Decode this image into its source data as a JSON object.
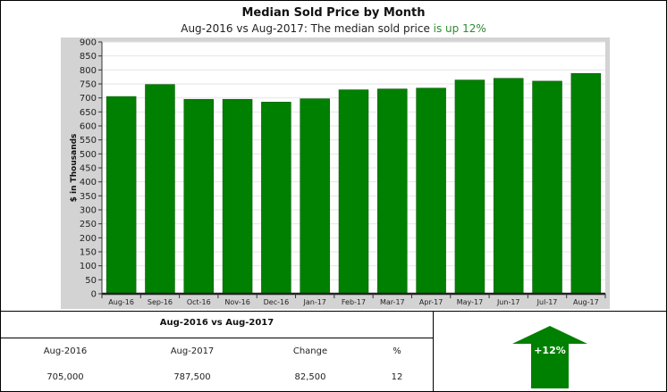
{
  "header": {
    "title": "Median Sold Price by Month",
    "subtitle_prefix": "Aug-2016 vs Aug-2017: The median sold price ",
    "subtitle_highlight": "is up 12%"
  },
  "chart_data": {
    "type": "bar",
    "title": "Median Sold Price by Month",
    "ylabel": "$ in Thousands",
    "xlabel": "",
    "categories": [
      "Aug-16",
      "Sep-16",
      "Oct-16",
      "Nov-16",
      "Dec-16",
      "Jan-17",
      "Feb-17",
      "Mar-17",
      "Apr-17",
      "May-17",
      "Jun-17",
      "Jul-17",
      "Aug-17"
    ],
    "values": [
      705,
      748,
      695,
      695,
      685,
      697,
      729,
      732,
      735,
      764,
      770,
      760,
      787.5
    ],
    "ylim": [
      0,
      900
    ],
    "yticks": [
      0,
      50,
      100,
      150,
      200,
      250,
      300,
      350,
      400,
      450,
      500,
      550,
      600,
      650,
      700,
      750,
      800,
      850,
      900
    ],
    "grid": true,
    "bar_color": "#008000"
  },
  "summary_table": {
    "title": "Aug-2016 vs Aug-2017",
    "headers": [
      "Aug-2016",
      "Aug-2017",
      "Change",
      "%"
    ],
    "values": [
      "705,000",
      "787,500",
      "82,500",
      "12"
    ]
  },
  "badge": {
    "label": "+12%",
    "color": "#008000",
    "icon": "up-arrow-icon"
  }
}
